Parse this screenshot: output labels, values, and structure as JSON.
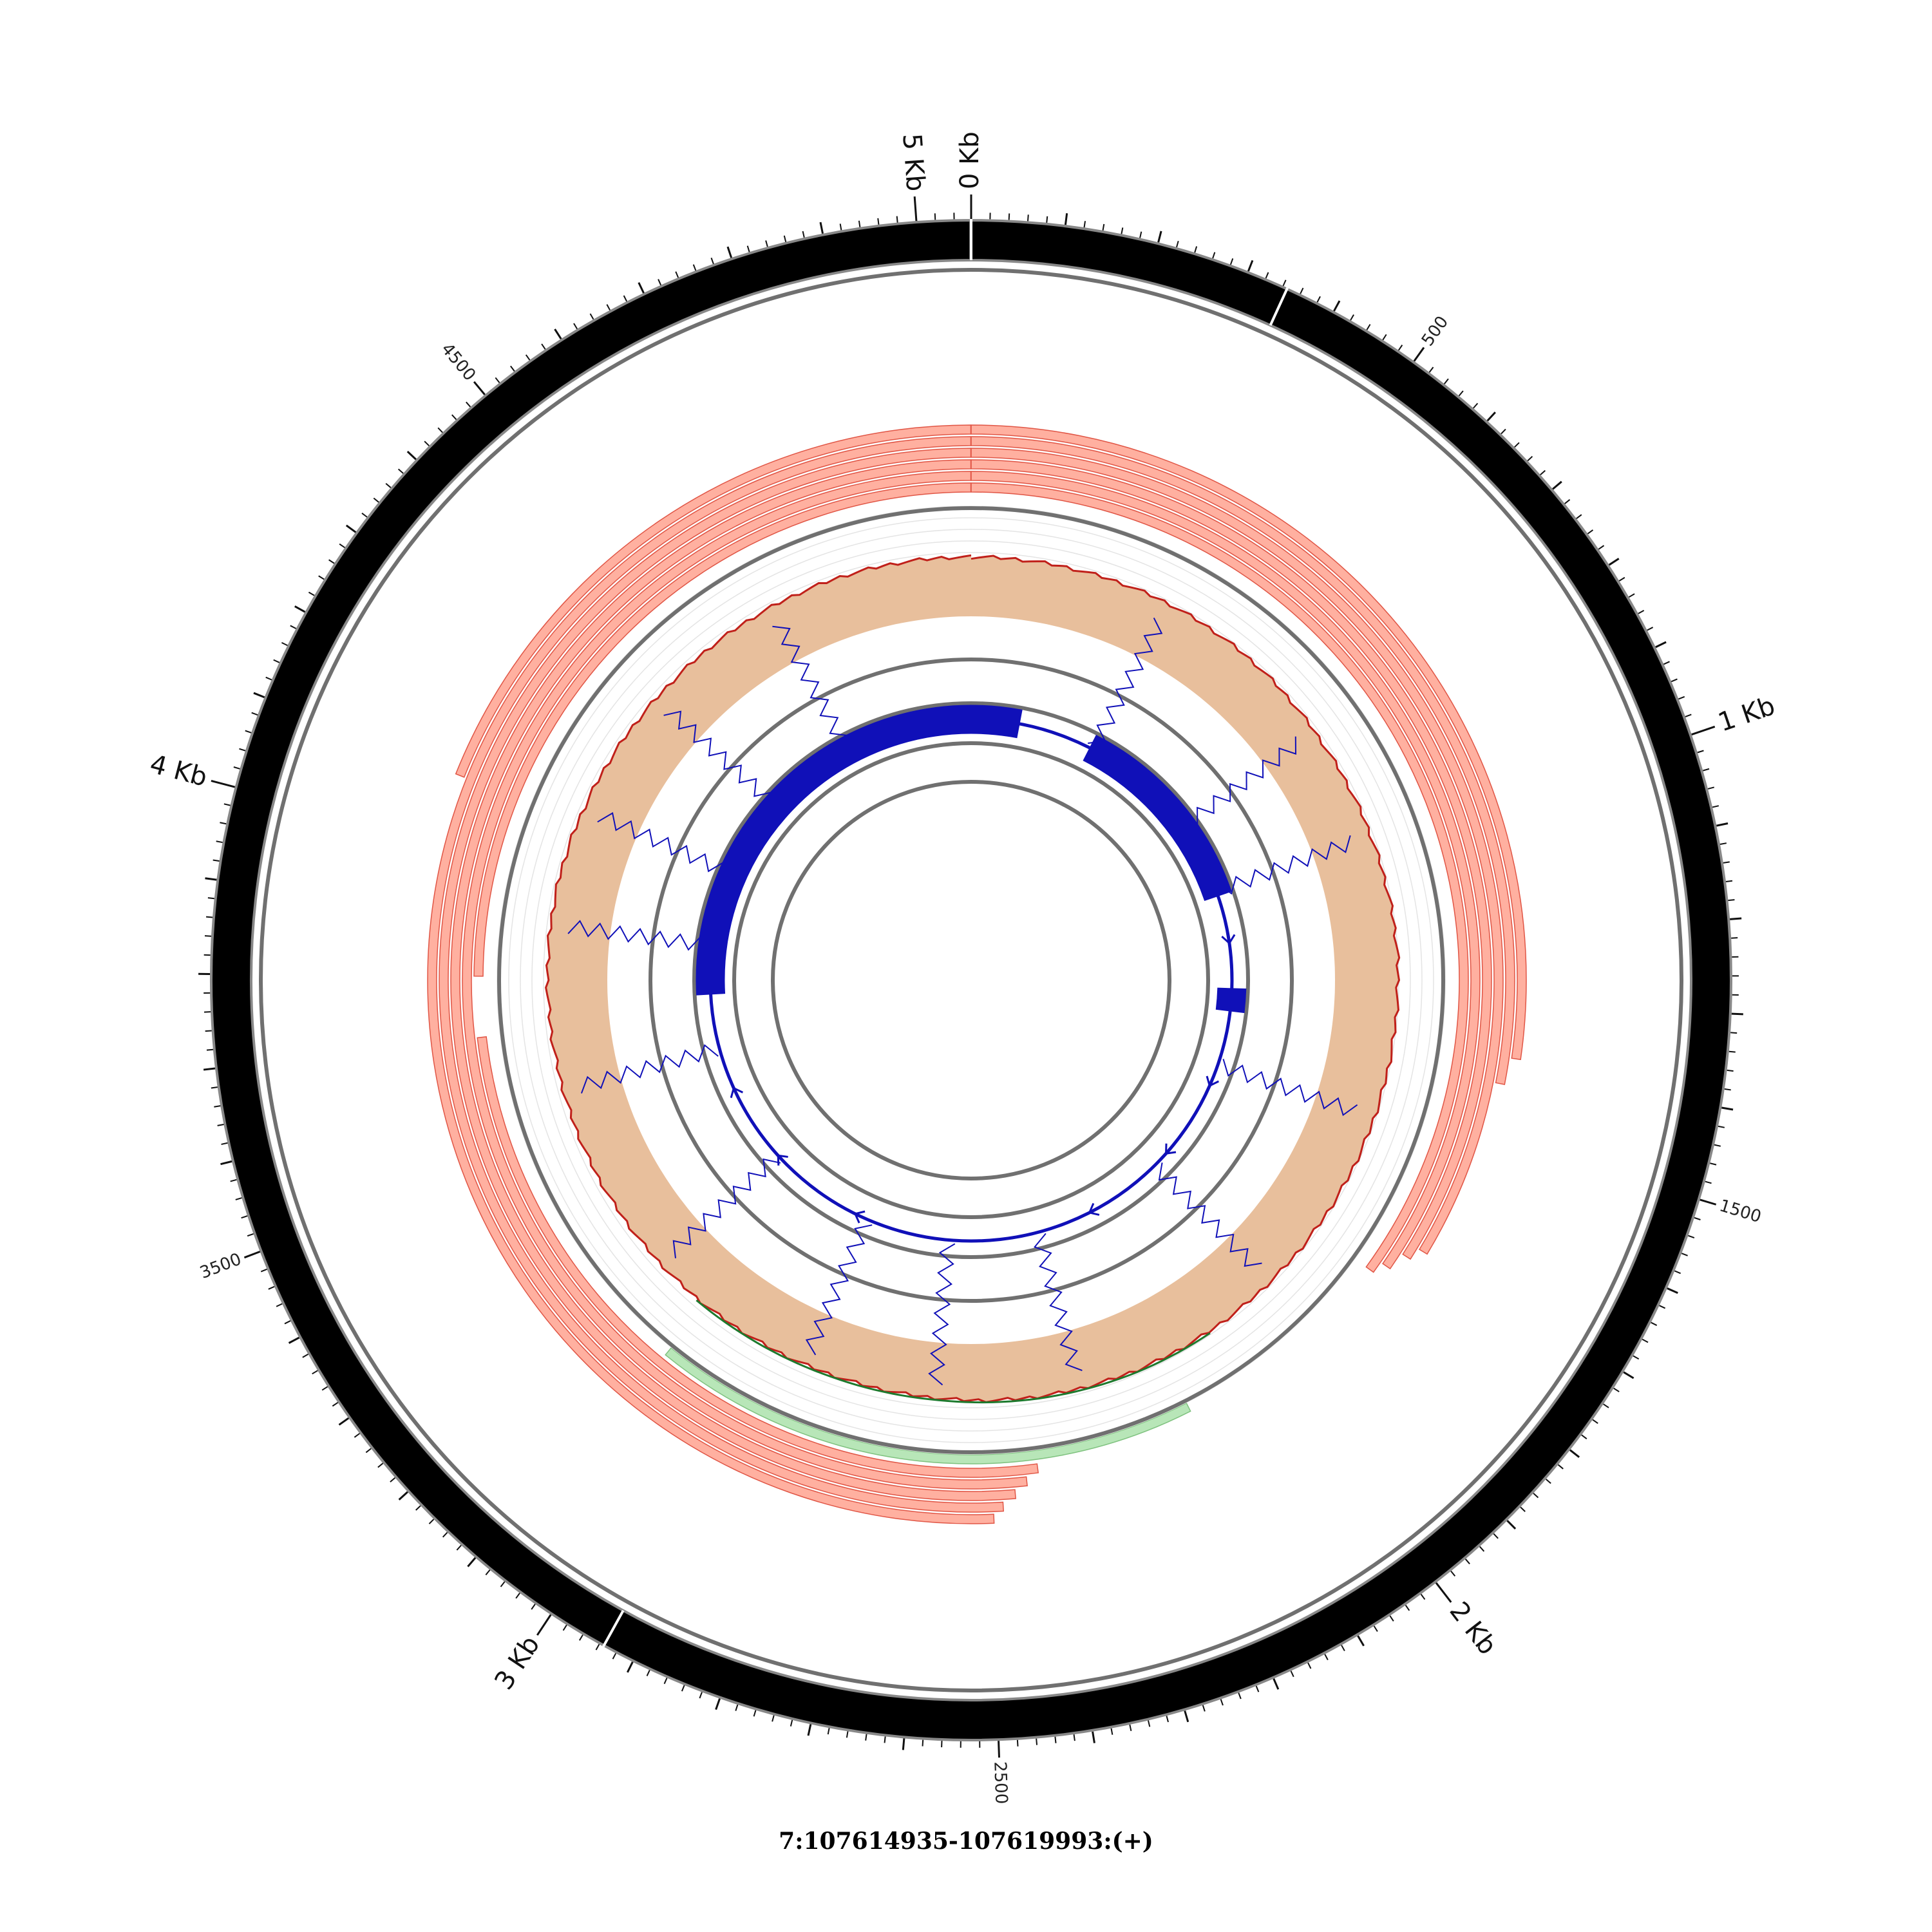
{
  "title": "7:107614935-107619993:(+)",
  "colors": {
    "ideogram": "#000000",
    "track_ring": "#707070",
    "read_fill": "#ffb0a0",
    "read_stroke": "#e05545",
    "read_alt_fill": "#b8e6b8",
    "read_alt_stroke": "#7fc27f",
    "coverage_fill": "#e8bf9c",
    "coverage_line": "#c0201a",
    "coverage_low_line": "#1e7a2e",
    "gene_color": "#1010b8"
  },
  "chart_data": {
    "type": "circos",
    "region": "7:107614935-107619993:(+)",
    "span_bp": 5058,
    "major_ticks": [
      {
        "pos": 0,
        "label": "0 Kb"
      },
      {
        "pos": 1000,
        "label": "1 Kb"
      },
      {
        "pos": 2000,
        "label": "2 Kb"
      },
      {
        "pos": 3000,
        "label": "3 Kb"
      },
      {
        "pos": 4000,
        "label": "4 Kb"
      },
      {
        "pos": 5000,
        "label": "5 Kb"
      }
    ],
    "minor_tick_labels": [
      {
        "pos": 500,
        "label": "500"
      },
      {
        "pos": 1500,
        "label": "1500"
      },
      {
        "pos": 2500,
        "label": "2500"
      },
      {
        "pos": 3500,
        "label": "3500"
      },
      {
        "pos": 4500,
        "label": "4500"
      }
    ],
    "ideogram_breaks": [
      345,
      2935
    ],
    "reads": [
      {
        "start": 0,
        "end": 1380,
        "row": 0
      },
      {
        "start": 4100,
        "end": 5058,
        "row": 0
      },
      {
        "start": 0,
        "end": 1420,
        "row": 1
      },
      {
        "start": 2495,
        "end": 5058,
        "row": 1
      },
      {
        "start": 0,
        "end": 1700,
        "row": 2
      },
      {
        "start": 2480,
        "end": 5058,
        "row": 2
      },
      {
        "start": 0,
        "end": 1720,
        "row": 3
      },
      {
        "start": 2460,
        "end": 5058,
        "row": 3
      },
      {
        "start": 0,
        "end": 1750,
        "row": 4
      },
      {
        "start": 2440,
        "end": 5058,
        "row": 4
      },
      {
        "start": 0,
        "end": 1770,
        "row": 5
      },
      {
        "start": 2420,
        "end": 3700,
        "row": 5
      },
      {
        "start": 3800,
        "end": 5058,
        "row": 5
      }
    ],
    "alt_reads": [
      {
        "start": 2150,
        "end": 3080
      }
    ],
    "coverage": [
      {
        "pos": 0,
        "value": 0.92
      },
      {
        "pos": 200,
        "value": 0.93
      },
      {
        "pos": 400,
        "value": 0.95
      },
      {
        "pos": 600,
        "value": 0.95
      },
      {
        "pos": 800,
        "value": 0.93
      },
      {
        "pos": 1000,
        "value": 0.95
      },
      {
        "pos": 1200,
        "value": 0.98
      },
      {
        "pos": 1400,
        "value": 0.97
      },
      {
        "pos": 1600,
        "value": 0.96
      },
      {
        "pos": 1800,
        "value": 0.95
      },
      {
        "pos": 2000,
        "value": 0.94
      },
      {
        "pos": 2200,
        "value": 0.93
      },
      {
        "pos": 2400,
        "value": 0.9
      },
      {
        "pos": 2600,
        "value": 0.86
      },
      {
        "pos": 2800,
        "value": 0.85
      },
      {
        "pos": 3000,
        "value": 0.86
      },
      {
        "pos": 3200,
        "value": 0.88
      },
      {
        "pos": 3400,
        "value": 0.9
      },
      {
        "pos": 3600,
        "value": 0.91
      },
      {
        "pos": 3800,
        "value": 0.93
      },
      {
        "pos": 4000,
        "value": 0.94
      },
      {
        "pos": 4200,
        "value": 0.92
      },
      {
        "pos": 4400,
        "value": 0.91
      },
      {
        "pos": 4600,
        "value": 0.92
      },
      {
        "pos": 4800,
        "value": 0.93
      },
      {
        "pos": 5058,
        "value": 0.92
      }
    ],
    "coverage_low_region": {
      "start": 2050,
      "end": 3100
    },
    "gene": {
      "strand": "+",
      "exons": [
        {
          "start": 0,
          "end": 150
        },
        {
          "start": 380,
          "end": 1000
        },
        {
          "start": 1290,
          "end": 1360
        },
        {
          "start": 3750,
          "end": 5058
        }
      ]
    },
    "junctions": [
      390,
      760,
      985,
      1530,
      1900,
      2320,
      2600,
      2860,
      3200,
      3580,
      3900,
      4130,
      4380,
      4660
    ]
  }
}
